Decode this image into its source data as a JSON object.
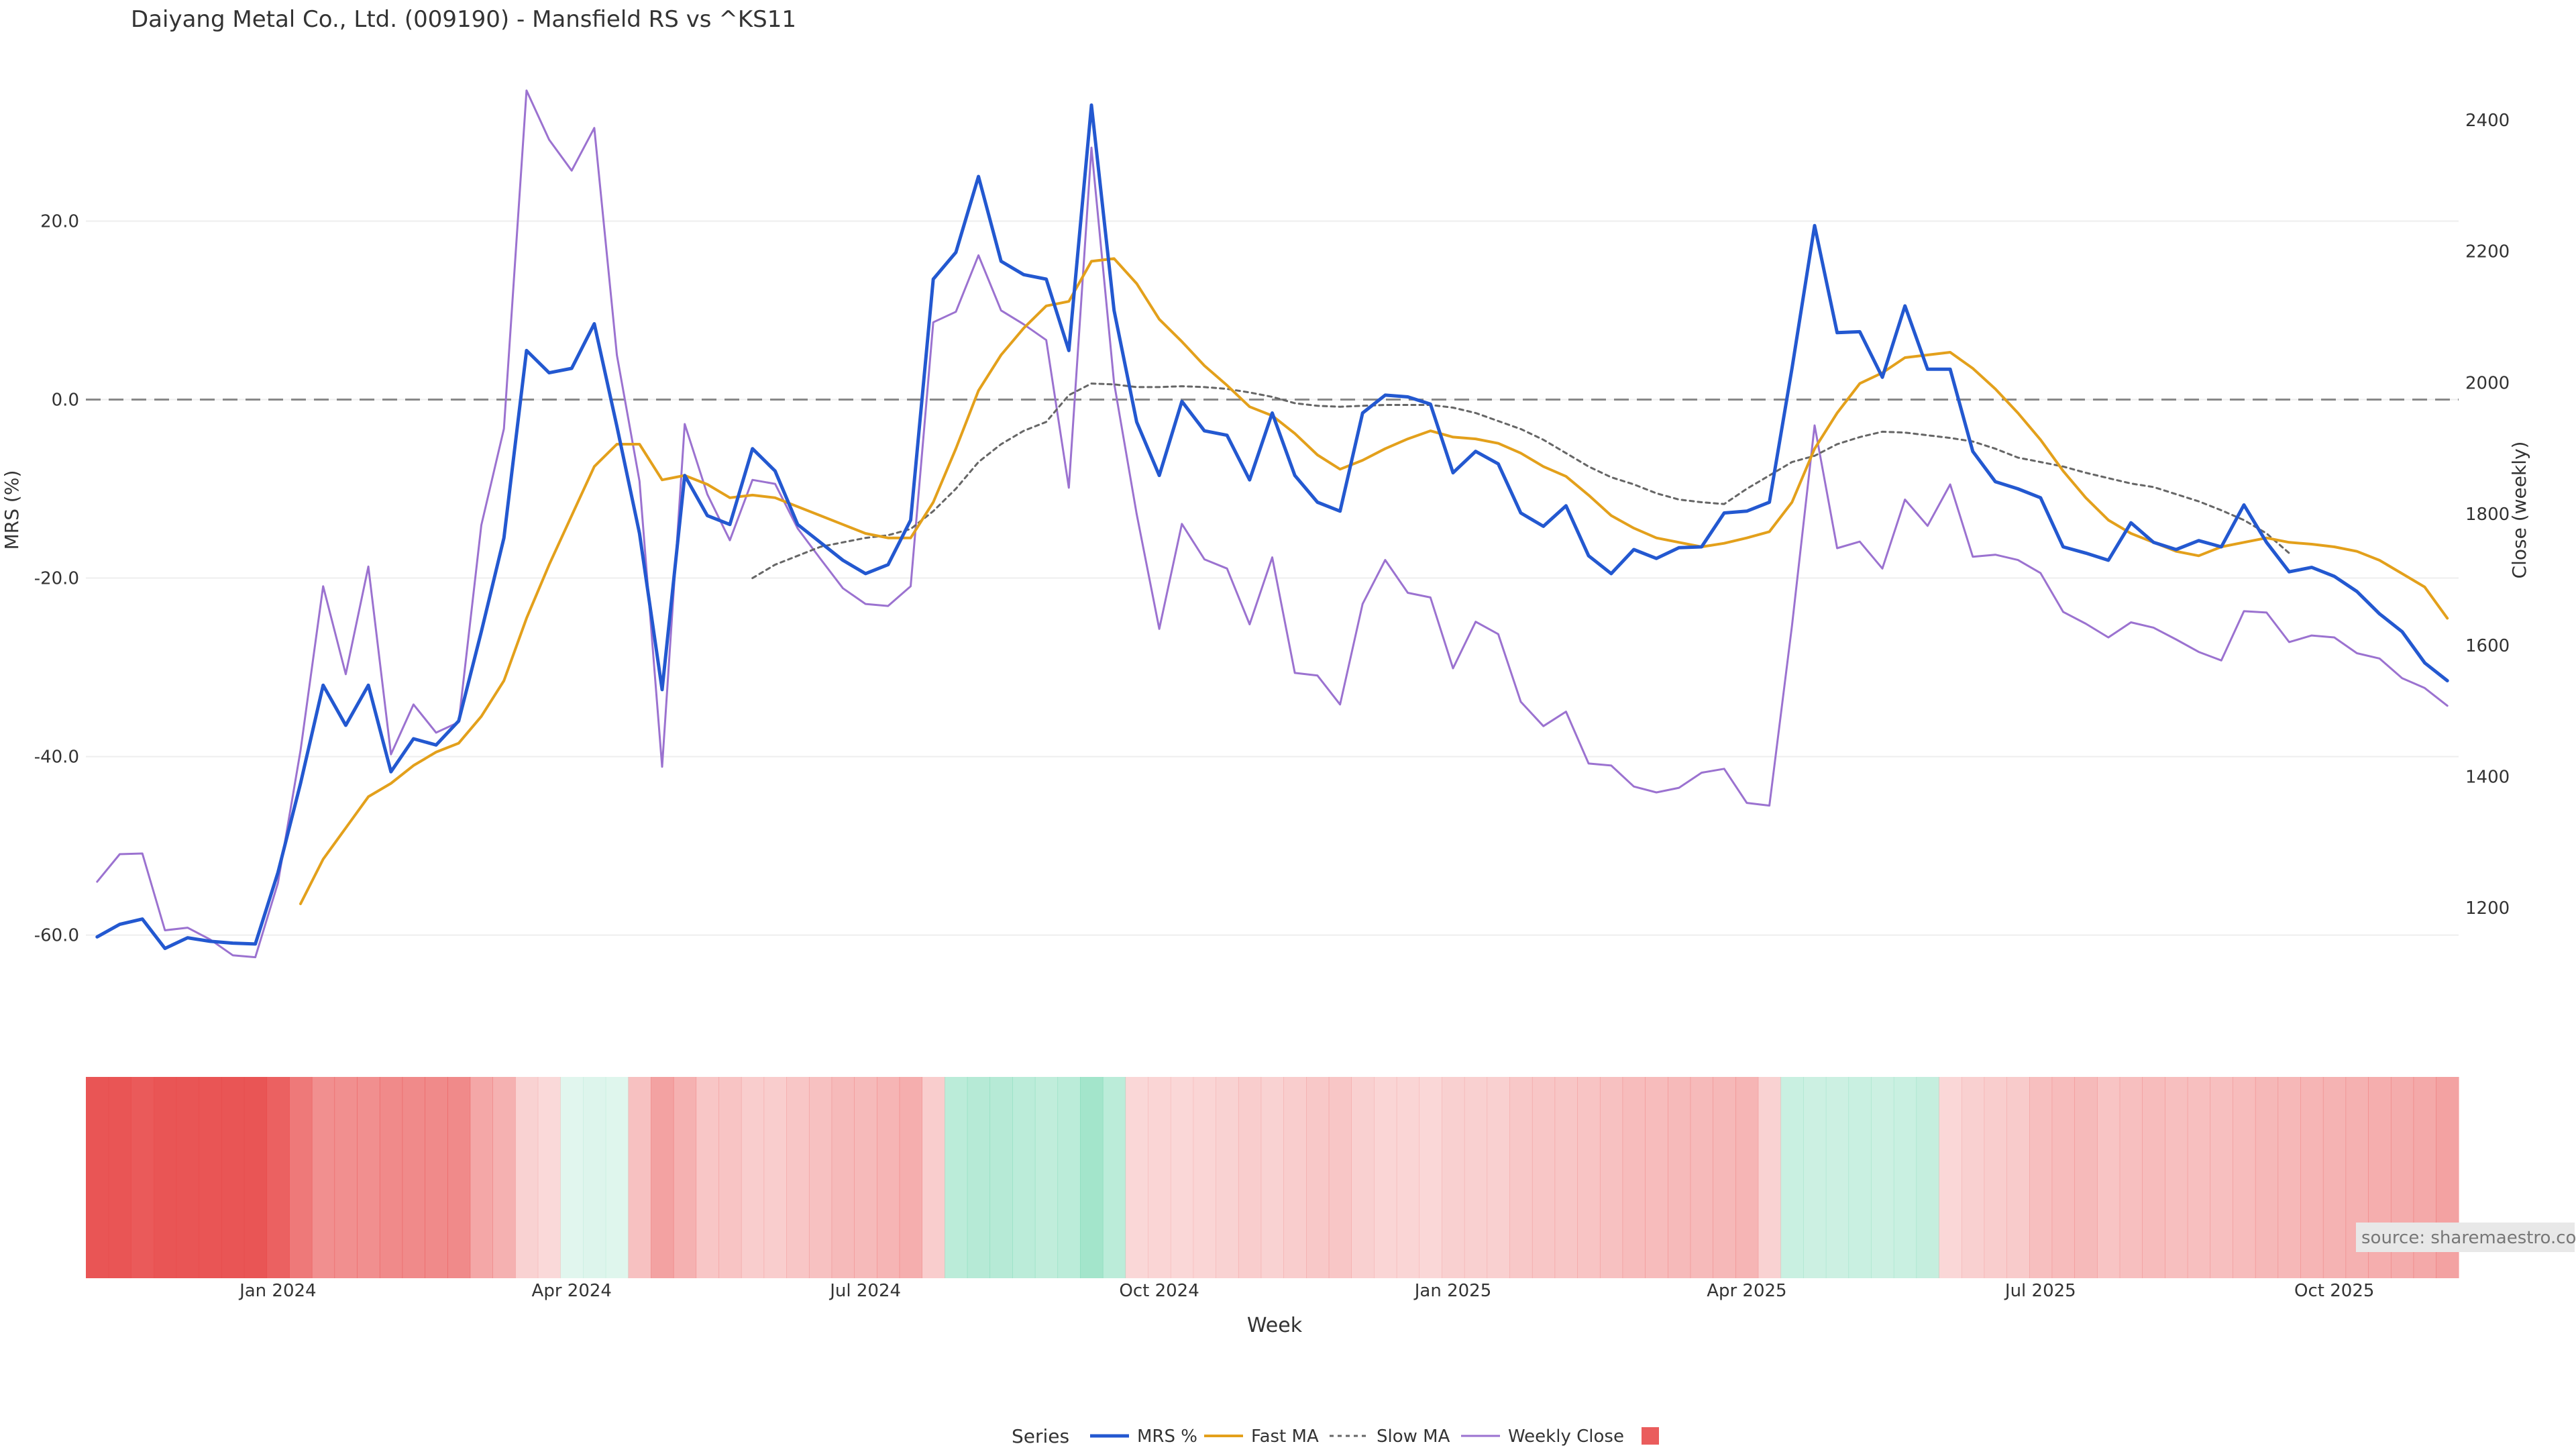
{
  "chart_data": {
    "type": "line",
    "title": "Daiyang Metal Co., Ltd. (009190) - Mansfield RS vs ^KS11",
    "xlabel": "Week",
    "ylabel_left": "MRS (%)",
    "ylabel_right": "Close (weekly)",
    "ylim_left": [
      -68,
      35
    ],
    "ylim_right": [
      1050,
      2450
    ],
    "yticks_left": [
      {
        "value": 20,
        "label": "20.0"
      },
      {
        "value": 0,
        "label": "0.0"
      },
      {
        "value": -20,
        "label": "-20.0"
      },
      {
        "value": -40,
        "label": "-40.0"
      },
      {
        "value": -60,
        "label": "-60.0"
      }
    ],
    "yticks_right": [
      2400,
      2200,
      2000,
      1800,
      1600,
      1400,
      1200
    ],
    "xticks": [
      {
        "week": 8,
        "label": "Jan 2024"
      },
      {
        "week": 21,
        "label": "Apr 2024"
      },
      {
        "week": 34,
        "label": "Jul 2024"
      },
      {
        "week": 47,
        "label": "Oct 2024"
      },
      {
        "week": 60,
        "label": "Jan 2025"
      },
      {
        "week": 73,
        "label": "Apr 2025"
      },
      {
        "week": 86,
        "label": "Jul 2025"
      },
      {
        "week": 99,
        "label": "Oct 2025"
      }
    ],
    "reference_line": 0,
    "grid": true,
    "legend_title": "Series",
    "legend_position": "bottom",
    "source_note": "source: sharemaestro.com",
    "colors": {
      "mrs": "#2358d0",
      "fast": "#e3a01b",
      "slow": "#666666",
      "close": "#9b72d0",
      "negative": "#e84a4a",
      "positive": "#4ccc9a"
    },
    "series": [
      {
        "name": "MRS %",
        "axis": "left",
        "start_week": 0,
        "values": [
          -60.2,
          -58.8,
          -58.2,
          -61.5,
          -60.3,
          -60.7,
          -60.9,
          -61.0,
          -53.0,
          -43.0,
          -32.0,
          -36.5,
          -32.0,
          -41.7,
          -38.0,
          -38.7,
          -36.0,
          -26.0,
          -15.5,
          5.5,
          3.0,
          3.5,
          8.5,
          -3.0,
          -15.0,
          -32.5,
          -8.5,
          -13.0,
          -14.0,
          -5.5,
          -8.0,
          -14.0,
          -16.0,
          -18.0,
          -19.5,
          -18.5,
          -13.5,
          13.5,
          16.5,
          25.0,
          15.5,
          14.0,
          13.5,
          5.5,
          33.0,
          10.0,
          -2.5,
          -8.5,
          -0.2,
          -3.5,
          -4.0,
          -9.0,
          -1.5,
          -8.5,
          -11.5,
          -12.5,
          -1.5,
          0.5,
          0.3,
          -0.5,
          -8.2,
          -5.8,
          -7.2,
          -12.7,
          -14.2,
          -11.9,
          -17.5,
          -19.5,
          -16.8,
          -17.8,
          -16.6,
          -16.5,
          -12.7,
          -12.5,
          -11.5,
          3.5,
          19.5,
          7.5,
          7.6,
          2.5,
          10.5,
          3.4,
          3.4,
          -5.8,
          -9.2,
          -10.0,
          -11.0,
          -16.5,
          -17.2,
          -18.0,
          -13.8,
          -16.0,
          -16.8,
          -15.8,
          -16.5,
          -11.8,
          -16.0,
          -19.3,
          -18.8,
          -19.8,
          -21.5,
          -24.0,
          -26.0,
          -29.5,
          -31.5
        ]
      },
      {
        "name": "Fast MA",
        "axis": "left",
        "start_week": 9,
        "values": [
          -56.5,
          -51.5,
          -48.0,
          -44.5,
          -43.0,
          -41.0,
          -39.5,
          -38.5,
          -35.5,
          -31.5,
          -24.5,
          -18.5,
          -13.0,
          -7.5,
          -5.0,
          -5.0,
          -9.0,
          -8.5,
          -9.5,
          -11.0,
          -10.7,
          -11.0,
          -12.0,
          -13.0,
          -14.0,
          -15.0,
          -15.5,
          -15.5,
          -11.5,
          -5.5,
          1.0,
          5.0,
          8.0,
          10.5,
          11.0,
          15.5,
          15.8,
          13.0,
          9.0,
          6.5,
          3.8,
          1.6,
          -0.8,
          -1.8,
          -3.8,
          -6.2,
          -7.8,
          -6.8,
          -5.5,
          -4.4,
          -3.5,
          -4.2,
          -4.4,
          -4.9,
          -6.0,
          -7.5,
          -8.6,
          -10.7,
          -13.0,
          -14.4,
          -15.5,
          -16.0,
          -16.5,
          -16.1,
          -15.5,
          -14.8,
          -11.5,
          -5.5,
          -1.5,
          1.8,
          3.0,
          4.7,
          5.0,
          5.3,
          3.5,
          1.2,
          -1.5,
          -4.5,
          -8.0,
          -11.0,
          -13.5,
          -15.0,
          -16.0,
          -17.0,
          -17.5,
          -16.5,
          -16.0,
          -15.5,
          -16.0,
          -16.2,
          -16.5,
          -17.0,
          -18.0,
          -19.5,
          -21.0,
          -24.5
        ]
      },
      {
        "name": "Slow MA",
        "axis": "left",
        "start_week": 29,
        "values": [
          -20.0,
          -18.5,
          -17.5,
          -16.5,
          -16.0,
          -15.5,
          -15.2,
          -14.5,
          -12.5,
          -10.0,
          -7.0,
          -5.0,
          -3.5,
          -2.5,
          0.5,
          1.8,
          1.7,
          1.4,
          1.4,
          1.5,
          1.4,
          1.2,
          0.8,
          0.3,
          -0.4,
          -0.7,
          -0.8,
          -0.7,
          -0.6,
          -0.6,
          -0.6,
          -0.9,
          -1.5,
          -2.4,
          -3.3,
          -4.5,
          -6.0,
          -7.5,
          -8.7,
          -9.5,
          -10.5,
          -11.2,
          -11.5,
          -11.7,
          -10.0,
          -8.5,
          -7.0,
          -6.3,
          -5.0,
          -4.2,
          -3.6,
          -3.7,
          -4.0,
          -4.3,
          -4.7,
          -5.5,
          -6.5,
          -7.0,
          -7.5,
          -8.2,
          -8.8,
          -9.4,
          -9.8,
          -10.6,
          -11.4,
          -12.4,
          -13.5,
          -15.0,
          -17.2
        ]
      },
      {
        "name": "Weekly Close",
        "axis": "right",
        "start_week": 0,
        "values": [
          1240,
          1282,
          1283,
          1166,
          1170,
          1152,
          1128,
          1125,
          1238,
          1440,
          1690,
          1556,
          1720,
          1434,
          1510,
          1467,
          1483,
          1783,
          1930,
          2445,
          2370,
          2323,
          2388,
          2042,
          1850,
          1415,
          1937,
          1830,
          1760,
          1852,
          1846,
          1778,
          1732,
          1687,
          1663,
          1660,
          1690,
          2092,
          2108,
          2194,
          2110,
          2089,
          2065,
          1840,
          2358,
          2000,
          1800,
          1625,
          1785,
          1731,
          1717,
          1632,
          1734,
          1558,
          1554,
          1510,
          1663,
          1730,
          1680,
          1673,
          1565,
          1636,
          1617,
          1514,
          1477,
          1499,
          1420,
          1417,
          1385,
          1376,
          1383,
          1406,
          1412,
          1360,
          1356,
          1630,
          1935,
          1748,
          1758,
          1717,
          1822,
          1782,
          1845,
          1735,
          1738,
          1730,
          1710,
          1651,
          1633,
          1612,
          1635,
          1627,
          1609,
          1590,
          1577,
          1652,
          1650,
          1605,
          1615,
          1612,
          1588,
          1580,
          1550,
          1535,
          1508
        ]
      }
    ],
    "heat_strip": {
      "description": "MRS sign/strength band",
      "values": [
        -60,
        -60,
        -58,
        -61,
        -60,
        -61,
        -61,
        -61,
        -55,
        -45,
        -36,
        -36,
        -36,
        -38,
        -38,
        -38,
        -38,
        -26,
        -22,
        -8,
        -5,
        2,
        4,
        3,
        -15,
        -28,
        -22,
        -13,
        -14,
        -10,
        -10,
        -13,
        -15,
        -18,
        -18,
        -20,
        -23,
        -10,
        18,
        20,
        20,
        18,
        16,
        18,
        28,
        18,
        -6,
        -7,
        -6,
        -7,
        -8,
        -10,
        -8,
        -10,
        -12,
        -13,
        -9,
        -7,
        -7,
        -6,
        -9,
        -9,
        -9,
        -12,
        -13,
        -13,
        -14,
        -15,
        -17,
        -17,
        -18,
        -18,
        -19,
        -20,
        -8,
        12,
        11,
        11,
        12,
        11,
        12,
        14,
        -6,
        -9,
        -10,
        -11,
        -16,
        -17,
        -18,
        -14,
        -16,
        -17,
        -16,
        -16,
        -16,
        -17,
        -19,
        -19,
        -20,
        -21,
        -22,
        -23,
        -24,
        -25,
        -28
      ]
    }
  }
}
